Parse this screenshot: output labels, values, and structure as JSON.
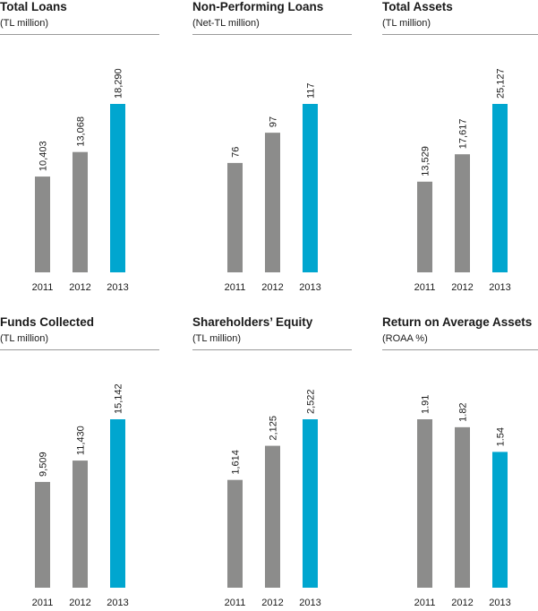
{
  "colors": {
    "past": "#8c8c8b",
    "current": "#00a6cf",
    "rule": "#9a9a9a"
  },
  "chart_data": [
    {
      "type": "bar",
      "title": "Total Loans",
      "subtitle": "(TL million)",
      "categories": [
        "2011",
        "2012",
        "2013"
      ],
      "values": [
        10403,
        13068,
        18290
      ],
      "labels": [
        "10,403",
        "13,068",
        "18,290"
      ],
      "highlight": "2013"
    },
    {
      "type": "bar",
      "title": "Non-Performing Loans",
      "subtitle": "(Net-TL million)",
      "categories": [
        "2011",
        "2012",
        "2013"
      ],
      "values": [
        76,
        97,
        117
      ],
      "labels": [
        "76",
        "97",
        "117"
      ],
      "highlight": "2013"
    },
    {
      "type": "bar",
      "title": "Total Assets",
      "subtitle": "(TL million)",
      "categories": [
        "2011",
        "2012",
        "2013"
      ],
      "values": [
        13529,
        17617,
        25127
      ],
      "labels": [
        "13,529",
        "17,617",
        "25,127"
      ],
      "highlight": "2013"
    },
    {
      "type": "bar",
      "title": "Funds Collected",
      "subtitle": "(TL million)",
      "categories": [
        "2011",
        "2012",
        "2013"
      ],
      "values": [
        9509,
        11430,
        15142
      ],
      "labels": [
        "9,509",
        "11,430",
        "15,142"
      ],
      "highlight": "2013"
    },
    {
      "type": "bar",
      "title": "Shareholders’ Equity",
      "subtitle": "(TL million)",
      "categories": [
        "2011",
        "2012",
        "2013"
      ],
      "values": [
        1614,
        2125,
        2522
      ],
      "labels": [
        "1,614",
        "2,125",
        "2,522"
      ],
      "highlight": "2013"
    },
    {
      "type": "bar",
      "title": "Return on Average Assets",
      "subtitle": "(ROAA %)",
      "categories": [
        "2011",
        "2012",
        "2013"
      ],
      "values": [
        1.91,
        1.82,
        1.54
      ],
      "labels": [
        "1.91",
        "1.82",
        "1.54"
      ],
      "highlight": "2013"
    }
  ]
}
